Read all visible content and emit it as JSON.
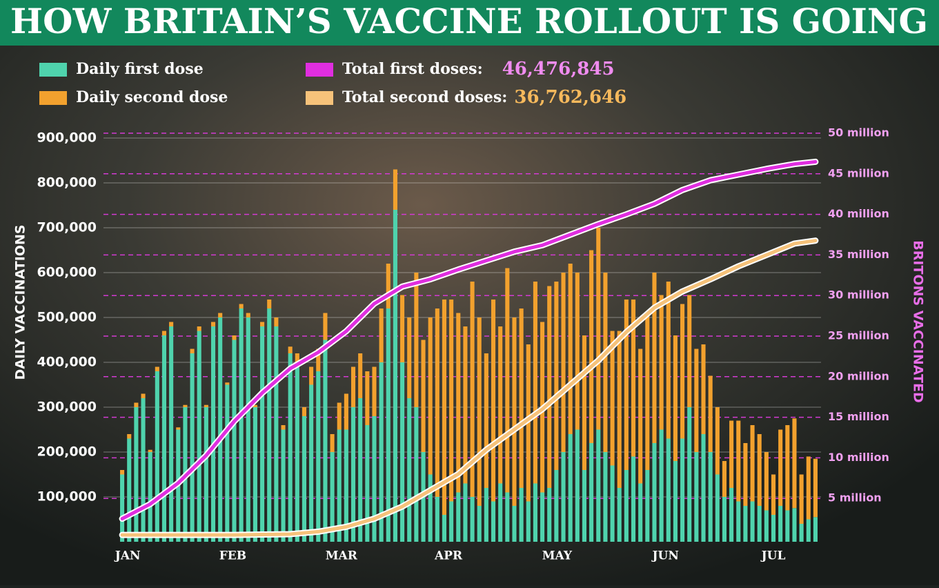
{
  "chart_data": {
    "type": "bar",
    "title": "HOW BRITAIN’S VACCINE ROLLOUT IS GOING",
    "ylabel": "DAILY VACCINATIONS",
    "y2label": "BRITONS VACCINATED",
    "xlim": [
      -0.5,
      99.5
    ],
    "xticks": [
      {
        "value": 0.8,
        "label": "JAN"
      },
      {
        "value": 15.8,
        "label": "FEB"
      },
      {
        "value": 31.3,
        "label": "MAR"
      },
      {
        "value": 46.6,
        "label": "APR"
      },
      {
        "value": 62.1,
        "label": "MAY"
      },
      {
        "value": 77.6,
        "label": "JUN"
      },
      {
        "value": 93,
        "label": "JUL"
      }
    ],
    "ylim": [
      0,
      900000
    ],
    "yticks": [
      {
        "value": 100000,
        "label": "100,000"
      },
      {
        "value": 200000,
        "label": "200,000"
      },
      {
        "value": 300000,
        "label": "300,000"
      },
      {
        "value": 400000,
        "label": "400,000"
      },
      {
        "value": 500000,
        "label": "500,000"
      },
      {
        "value": 600000,
        "label": "600,000"
      },
      {
        "value": 700000,
        "label": "700,000"
      },
      {
        "value": 800000,
        "label": "800,000"
      },
      {
        "value": 900000,
        "label": "900,000"
      }
    ],
    "y2lim": [
      0,
      50
    ],
    "y2ticks": [
      {
        "value": 5,
        "label": "5 million"
      },
      {
        "value": 10,
        "label": "10 million"
      },
      {
        "value": 15,
        "label": "15 million"
      },
      {
        "value": 20,
        "label": "20 million"
      },
      {
        "value": 25,
        "label": "25 million"
      },
      {
        "value": 30,
        "label": "30 million"
      },
      {
        "value": 35,
        "label": "35 million"
      },
      {
        "value": 40,
        "label": "40 million"
      },
      {
        "value": 45,
        "label": "45 million"
      },
      {
        "value": 50,
        "label": "50 million"
      }
    ],
    "grid": true,
    "series": [
      {
        "name": "Daily first dose",
        "color": "#4fd3ad",
        "values": [
          150000,
          230000,
          300000,
          320000,
          200000,
          380000,
          460000,
          480000,
          250000,
          300000,
          420000,
          470000,
          300000,
          480000,
          500000,
          350000,
          450000,
          520000,
          500000,
          300000,
          480000,
          520000,
          480000,
          250000,
          420000,
          400000,
          280000,
          350000,
          380000,
          450000,
          200000,
          250000,
          250000,
          300000,
          320000,
          260000,
          280000,
          400000,
          520000,
          740000,
          400000,
          320000,
          300000,
          200000,
          150000,
          100000,
          60000,
          90000,
          110000,
          130000,
          100000,
          80000,
          120000,
          90000,
          130000,
          110000,
          80000,
          120000,
          90000,
          130000,
          110000,
          120000,
          160000,
          200000,
          240000,
          250000,
          160000,
          220000,
          250000,
          200000,
          170000,
          120000,
          160000,
          190000,
          130000,
          160000,
          220000,
          250000,
          230000,
          180000,
          230000,
          300000,
          200000,
          240000,
          200000,
          150000,
          100000,
          120000,
          90000,
          80000,
          90000,
          80000,
          70000,
          60000,
          80000,
          70000,
          75000,
          40000,
          50000,
          55000
        ]
      },
      {
        "name": "Daily second dose",
        "color": "#f2a12e",
        "values": [
          10000,
          10000,
          10000,
          10000,
          5000,
          10000,
          10000,
          10000,
          5000,
          5000,
          10000,
          10000,
          5000,
          10000,
          10000,
          5000,
          10000,
          10000,
          10000,
          5000,
          10000,
          20000,
          20000,
          10000,
          15000,
          20000,
          20000,
          40000,
          50000,
          60000,
          40000,
          60000,
          80000,
          90000,
          100000,
          120000,
          110000,
          120000,
          100000,
          90000,
          150000,
          180000,
          300000,
          250000,
          350000,
          420000,
          480000,
          450000,
          400000,
          350000,
          480000,
          420000,
          300000,
          450000,
          350000,
          500000,
          420000,
          400000,
          350000,
          450000,
          380000,
          450000,
          420000,
          400000,
          380000,
          350000,
          300000,
          430000,
          450000,
          400000,
          300000,
          350000,
          380000,
          350000,
          300000,
          350000,
          380000,
          300000,
          350000,
          280000,
          300000,
          250000,
          230000,
          200000,
          170000,
          150000,
          80000,
          150000,
          180000,
          140000,
          170000,
          160000,
          130000,
          90000,
          170000,
          190000,
          200000,
          110000,
          140000,
          130000
        ]
      },
      {
        "name": "Total first doses:",
        "type": "line",
        "axis": "y2",
        "color": "#e02ee0",
        "total_label": "46,476,845",
        "total_color": "#f08cf0",
        "x": [
          0,
          4,
          8,
          12,
          16,
          20,
          24,
          28,
          32,
          36,
          40,
          44,
          48,
          52,
          56,
          60,
          64,
          68,
          72,
          76,
          80,
          84,
          88,
          92,
          96,
          99
        ],
        "values": [
          2.5,
          4.3,
          6.9,
          10.3,
          14.5,
          18,
          21,
          23,
          25.6,
          29,
          31.1,
          32,
          33.2,
          34.3,
          35.4,
          36.2,
          37.5,
          38.8,
          40,
          41.3,
          43,
          44.2,
          44.9,
          45.6,
          46.2,
          46.476845
        ]
      },
      {
        "name": "Total second doses:",
        "type": "line",
        "axis": "y2",
        "color": "#f6c27a",
        "total_label": "36,762,646",
        "total_color": "#f6b95c",
        "x": [
          0,
          4,
          8,
          12,
          16,
          20,
          24,
          28,
          32,
          36,
          40,
          44,
          48,
          52,
          56,
          60,
          64,
          68,
          72,
          76,
          80,
          84,
          88,
          92,
          96,
          99
        ],
        "values": [
          0.5,
          0.5,
          0.5,
          0.5,
          0.5,
          0.55,
          0.6,
          0.9,
          1.5,
          2.5,
          4,
          6,
          8,
          11,
          13.5,
          16,
          19,
          22,
          25.5,
          28.5,
          30.5,
          32,
          33.6,
          35,
          36.4,
          36.762646
        ]
      }
    ]
  }
}
